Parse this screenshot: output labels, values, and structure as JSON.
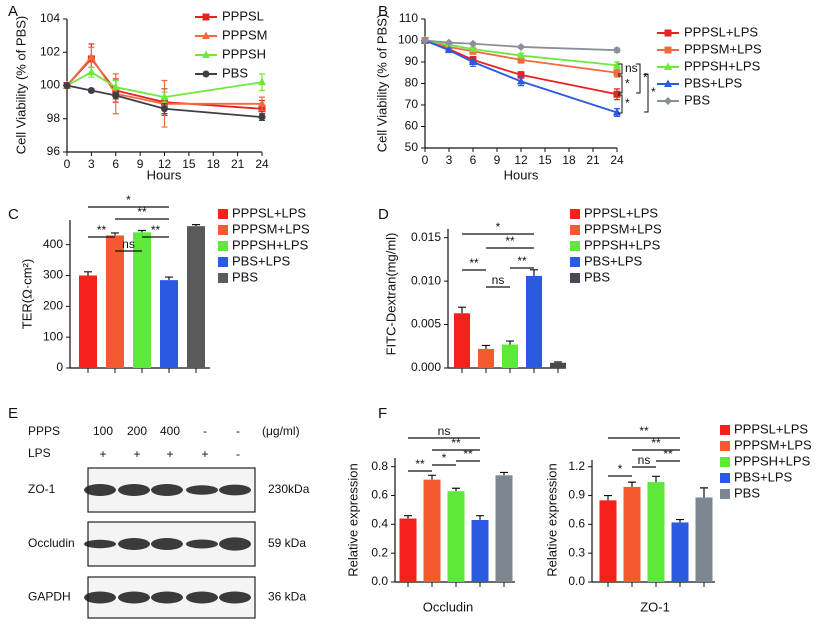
{
  "chart_data": [
    {
      "type": "line",
      "label": "A",
      "ylabel": "Cell Viability (% of PBS)",
      "xlabel": "Hours",
      "x": [
        0,
        3,
        6,
        12,
        24
      ],
      "xlim": [
        0,
        24
      ],
      "xticks": [
        0,
        3,
        6,
        9,
        12,
        15,
        18,
        21,
        24
      ],
      "ylim": [
        96,
        104
      ],
      "yticks": [
        96,
        98,
        100,
        102,
        104
      ],
      "series": [
        {
          "name": "PPPSL",
          "color": "#e8231f",
          "marker": "square",
          "values": [
            100,
            101.6,
            99.7,
            99.0,
            98.6
          ],
          "errors": [
            0,
            0.9,
            0.7,
            0.8,
            0.5
          ]
        },
        {
          "name": "PPPSM",
          "color": "#f26a3e",
          "marker": "triangle",
          "values": [
            100,
            101.7,
            99.5,
            98.9,
            98.9
          ],
          "errors": [
            0,
            0.6,
            1.2,
            1.4,
            0.4
          ]
        },
        {
          "name": "PPPSH",
          "color": "#6fe83c",
          "marker": "triangle",
          "values": [
            100,
            100.8,
            99.9,
            99.3,
            100.2
          ],
          "errors": [
            0,
            0.3,
            0.4,
            0.3,
            0.5
          ]
        },
        {
          "name": "PBS",
          "color": "#3c4046",
          "marker": "circle",
          "values": [
            100,
            99.7,
            99.4,
            98.6,
            98.1
          ],
          "errors": [
            0,
            0.1,
            0.2,
            0.3,
            0.2
          ]
        }
      ]
    },
    {
      "type": "line",
      "label": "B",
      "ylabel": "Cell Viability (% of PBS)",
      "xlabel": "Hours",
      "x": [
        0,
        3,
        6,
        12,
        24
      ],
      "xlim": [
        0,
        24
      ],
      "xticks": [
        0,
        3,
        6,
        9,
        12,
        15,
        18,
        21,
        24
      ],
      "ylim": [
        50,
        110
      ],
      "yticks": [
        50,
        60,
        70,
        80,
        90,
        100,
        110
      ],
      "series": [
        {
          "name": "PPPSL+LPS",
          "color": "#e8231f",
          "marker": "square",
          "values": [
            100,
            96,
            91,
            84,
            75
          ],
          "errors": [
            0,
            1,
            1.5,
            1.5,
            2.5
          ]
        },
        {
          "name": "PPPSM+LPS",
          "color": "#f26a3e",
          "marker": "square",
          "values": [
            100,
            97,
            95,
            91,
            85
          ],
          "errors": [
            0,
            1,
            1,
            1.5,
            2
          ]
        },
        {
          "name": "PPPSH+LPS",
          "color": "#6fe83c",
          "marker": "triangle",
          "values": [
            100,
            98,
            96,
            93,
            88.5
          ],
          "errors": [
            0,
            0.5,
            1,
            1,
            1.5
          ]
        },
        {
          "name": "PBS+LPS",
          "color": "#2a5ae0",
          "marker": "triangle",
          "values": [
            100,
            95.5,
            90,
            81,
            66.5
          ],
          "errors": [
            0,
            1,
            2,
            2,
            1.8
          ]
        },
        {
          "name": "PBS",
          "color": "#8a9099",
          "marker": "diamond",
          "values": [
            100,
            99,
            98.5,
            97,
            95.5
          ],
          "errors": [
            0,
            0.5,
            0.5,
            0.5,
            1
          ]
        }
      ],
      "annotations": [
        "ns",
        "*",
        "*",
        "*",
        "*"
      ]
    },
    {
      "type": "bar",
      "label": "C",
      "ylabel": "TER(Ω·cm²)",
      "ylim": [
        0,
        480
      ],
      "yticks": [
        0,
        100,
        200,
        300,
        400
      ],
      "series": [
        {
          "name": "PPPSL+LPS",
          "color": "#f5201c",
          "values": [
            300
          ],
          "errors": [
            12
          ]
        },
        {
          "name": "PPPSM+LPS",
          "color": "#f5592f",
          "values": [
            430
          ],
          "errors": [
            8
          ]
        },
        {
          "name": "PPPSH+LPS",
          "color": "#5de83a",
          "values": [
            440
          ],
          "errors": [
            6
          ]
        },
        {
          "name": "PBS+LPS",
          "color": "#2a5ae0",
          "values": [
            285
          ],
          "errors": [
            10
          ]
        },
        {
          "name": "PBS",
          "color": "#5a5a5a",
          "values": [
            460
          ],
          "errors": [
            5
          ]
        }
      ],
      "annotations": [
        "*",
        "**",
        "**",
        "ns",
        "**"
      ]
    },
    {
      "type": "bar",
      "label": "D",
      "ylabel": "FITC-Dextran(mg/ml)",
      "ylim": [
        0,
        0.016
      ],
      "yticks": [
        {
          "value": 0,
          "label": "0.000"
        },
        0.005,
        {
          "value": 0.01,
          "label": "0.010"
        },
        0.015
      ],
      "series": [
        {
          "name": "PPPSL+LPS",
          "color": "#f5201c",
          "values": [
            0.0063
          ],
          "errors": [
            0.0007
          ]
        },
        {
          "name": "PPPSM+LPS",
          "color": "#f5592f",
          "values": [
            0.0022
          ],
          "errors": [
            0.0004
          ]
        },
        {
          "name": "PPPSH+LPS",
          "color": "#5de83a",
          "values": [
            0.0027
          ],
          "errors": [
            0.0004
          ]
        },
        {
          "name": "PBS+LPS",
          "color": "#2a5ae0",
          "values": [
            0.0106
          ],
          "errors": [
            0.0007
          ]
        },
        {
          "name": "PBS",
          "color": "#454a52",
          "values": [
            0.0006
          ],
          "errors": [
            0.0001
          ]
        }
      ],
      "annotations": [
        "*",
        "**",
        "**",
        "ns",
        "**"
      ]
    },
    {
      "type": "bar",
      "label": "F",
      "ylabel": "Relative expression",
      "xlabel": "Occludin",
      "ylim": [
        0,
        0.86
      ],
      "yticks": [
        {
          "value": 0,
          "label": "0.0"
        },
        0.2,
        0.4,
        0.6,
        0.8
      ],
      "series": [
        {
          "color": "#f5201c",
          "values": [
            0.44
          ],
          "errors": [
            0.02
          ]
        },
        {
          "color": "#f5592f",
          "values": [
            0.71
          ],
          "errors": [
            0.03
          ]
        },
        {
          "color": "#5de83a",
          "values": [
            0.63
          ],
          "errors": [
            0.02
          ]
        },
        {
          "color": "#2a5ae0",
          "values": [
            0.43
          ],
          "errors": [
            0.03
          ]
        },
        {
          "color": "#7d8790",
          "values": [
            0.74
          ],
          "errors": [
            0.02
          ]
        }
      ],
      "annotations": [
        "ns",
        "**",
        "**",
        "**",
        "*"
      ]
    },
    {
      "type": "bar",
      "ylabel": "Relative expression",
      "xlabel": "ZO-1",
      "ylim": [
        0,
        1.27
      ],
      "yticks": [
        {
          "value": 0,
          "label": "0.0"
        },
        0.3,
        0.6,
        0.9,
        1.2
      ],
      "series": [
        {
          "name": "PPPSL+LPS",
          "color": "#f5201c",
          "values": [
            0.85
          ],
          "errors": [
            0.05
          ]
        },
        {
          "name": "PPPSM+LPS",
          "color": "#f5592f",
          "values": [
            0.99
          ],
          "errors": [
            0.05
          ]
        },
        {
          "name": "PPPSH+LPS",
          "color": "#5de83a",
          "values": [
            1.04
          ],
          "errors": [
            0.06
          ]
        },
        {
          "name": "PBS+LPS",
          "color": "#2a5ae0",
          "values": [
            0.62
          ],
          "errors": [
            0.03
          ]
        },
        {
          "name": "PBS",
          "color": "#7d8790",
          "values": [
            0.88
          ],
          "errors": [
            0.1
          ]
        }
      ],
      "annotations": [
        "**",
        "**",
        "**",
        "ns",
        "*"
      ]
    }
  ],
  "blot": {
    "label": "E",
    "treatment_label": "PPPS",
    "doses": [
      "100",
      "200",
      "400",
      "-",
      "-"
    ],
    "unit": "(μg/ml)",
    "lps_label": "LPS",
    "lps": [
      "+",
      "+",
      "+",
      "+",
      "-"
    ],
    "rows": [
      {
        "name": "ZO-1",
        "size": "230kDa"
      },
      {
        "name": "Occludin",
        "size": "59 kDa"
      },
      {
        "name": "GAPDH",
        "size": "36 kDa"
      }
    ]
  }
}
